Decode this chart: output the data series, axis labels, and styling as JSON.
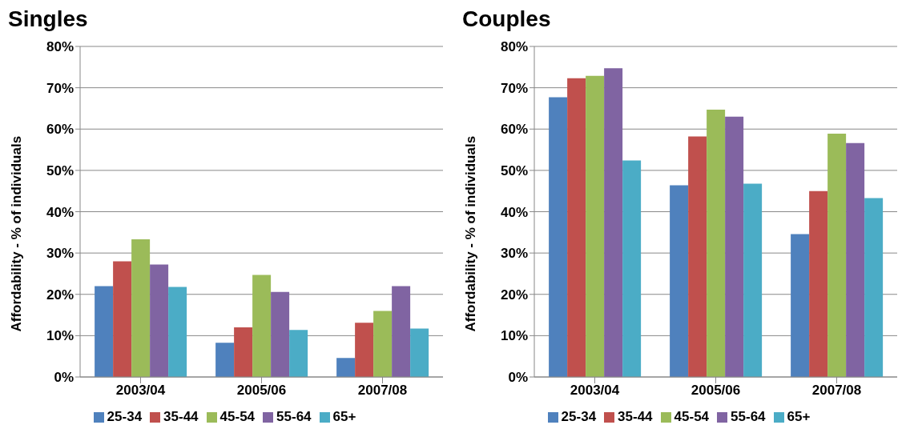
{
  "chart_data": [
    {
      "type": "bar",
      "title": "Singles",
      "ylabel": "Affordability - % of individuals",
      "categories": [
        "2003/04",
        "2005/06",
        "2007/08"
      ],
      "series": [
        {
          "name": "25-34",
          "color": "#4f81bd",
          "values": [
            22,
            8.3,
            4.6
          ]
        },
        {
          "name": "35-44",
          "color": "#c0504d",
          "values": [
            28,
            12,
            13.1
          ]
        },
        {
          "name": "45-54",
          "color": "#9bbb59",
          "values": [
            33.3,
            24.7,
            16
          ]
        },
        {
          "name": "55-64",
          "color": "#8064a2",
          "values": [
            27.2,
            20.6,
            22
          ]
        },
        {
          "name": "65+",
          "color": "#4bacc6",
          "values": [
            21.8,
            11.4,
            11.7
          ]
        }
      ],
      "ylim": [
        0,
        80
      ],
      "yticks": [
        {
          "value": 0,
          "label": "0%"
        },
        {
          "value": 10,
          "label": "10%"
        },
        {
          "value": 20,
          "label": "20%"
        },
        {
          "value": 30,
          "label": "30%"
        },
        {
          "value": 40,
          "label": "40%"
        },
        {
          "value": 50,
          "label": "50%"
        },
        {
          "value": 60,
          "label": "60%"
        },
        {
          "value": 70,
          "label": "70%"
        },
        {
          "value": 80,
          "label": "80%"
        }
      ],
      "grid": "y",
      "legend": "bottom"
    },
    {
      "type": "bar",
      "title": "Couples",
      "ylabel": "Affordability - % of individuals",
      "categories": [
        "2003/04",
        "2005/06",
        "2007/08"
      ],
      "series": [
        {
          "name": "25-34",
          "color": "#4f81bd",
          "values": [
            67.7,
            46.4,
            34.6
          ]
        },
        {
          "name": "35-44",
          "color": "#c0504d",
          "values": [
            72.3,
            58.2,
            45
          ]
        },
        {
          "name": "45-54",
          "color": "#9bbb59",
          "values": [
            72.9,
            64.7,
            58.9
          ]
        },
        {
          "name": "55-64",
          "color": "#8064a2",
          "values": [
            74.7,
            63,
            56.6
          ]
        },
        {
          "name": "65+",
          "color": "#4bacc6",
          "values": [
            52.4,
            46.8,
            43.3
          ]
        }
      ],
      "ylim": [
        0,
        80
      ],
      "yticks": [
        {
          "value": 0,
          "label": "0%"
        },
        {
          "value": 10,
          "label": "10%"
        },
        {
          "value": 20,
          "label": "20%"
        },
        {
          "value": 30,
          "label": "30%"
        },
        {
          "value": 40,
          "label": "40%"
        },
        {
          "value": 50,
          "label": "50%"
        },
        {
          "value": 60,
          "label": "60%"
        },
        {
          "value": 70,
          "label": "70%"
        },
        {
          "value": 80,
          "label": "80%"
        }
      ],
      "grid": "y",
      "legend": "bottom"
    }
  ]
}
